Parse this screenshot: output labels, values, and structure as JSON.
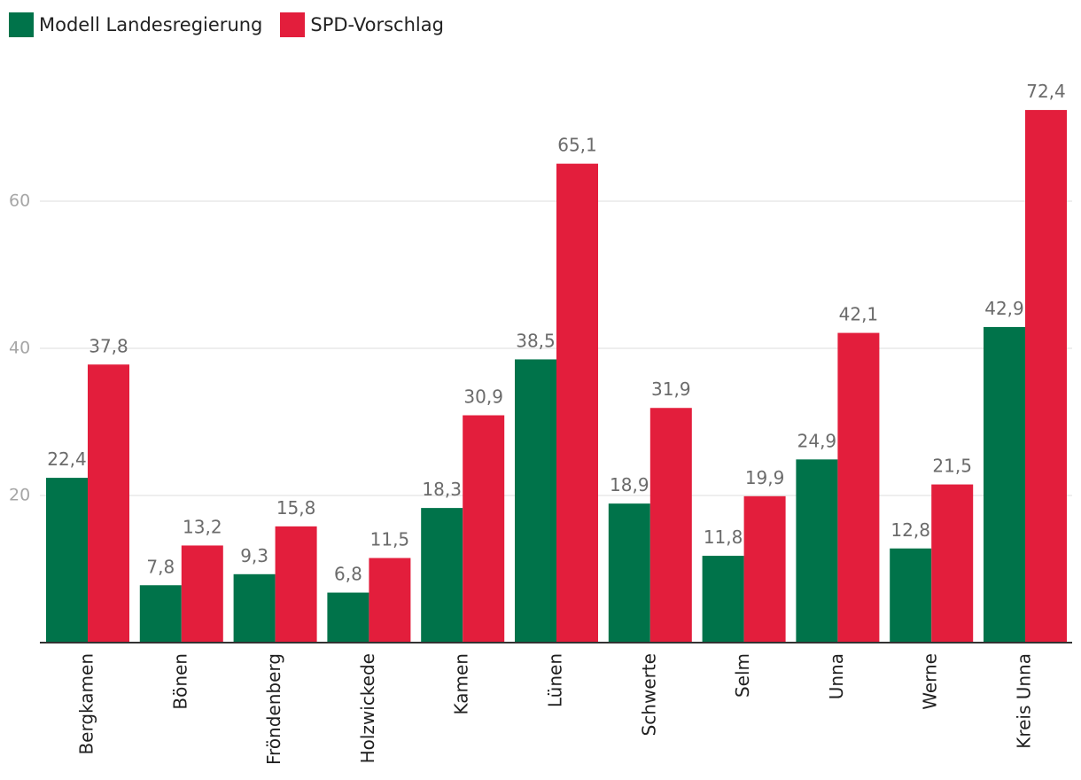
{
  "chart_data": {
    "type": "bar",
    "categories": [
      "Bergkamen",
      "Bönen",
      "Fröndenberg",
      "Holzwickede",
      "Kamen",
      "Lünen",
      "Schwerte",
      "Selm",
      "Unna",
      "Werne",
      "Kreis Unna"
    ],
    "series": [
      {
        "name": "Modell Landesregierung",
        "color": "#00734a",
        "values": [
          22.4,
          7.8,
          9.3,
          6.8,
          18.3,
          38.5,
          18.9,
          11.8,
          24.9,
          12.8,
          42.9
        ],
        "labels": [
          "22,4",
          "7,8",
          "9,3",
          "6,8",
          "18,3",
          "38,5",
          "18,9",
          "11,8",
          "24,9",
          "12,8",
          "42,9"
        ]
      },
      {
        "name": "SPD-Vorschlag",
        "color": "#e31e3c",
        "values": [
          37.8,
          13.2,
          15.8,
          11.5,
          30.9,
          65.1,
          31.9,
          19.9,
          42.1,
          21.5,
          72.4
        ],
        "labels": [
          "37,8",
          "13,2",
          "15,8",
          "11,5",
          "30,9",
          "65,1",
          "31,9",
          "19,9",
          "42,1",
          "21,5",
          "72,4"
        ]
      }
    ],
    "yticks": [
      20,
      40,
      60
    ],
    "ylim": [
      0,
      75
    ],
    "grid": true,
    "legend": "top-left",
    "title": "",
    "xlabel": "",
    "ylabel": ""
  }
}
